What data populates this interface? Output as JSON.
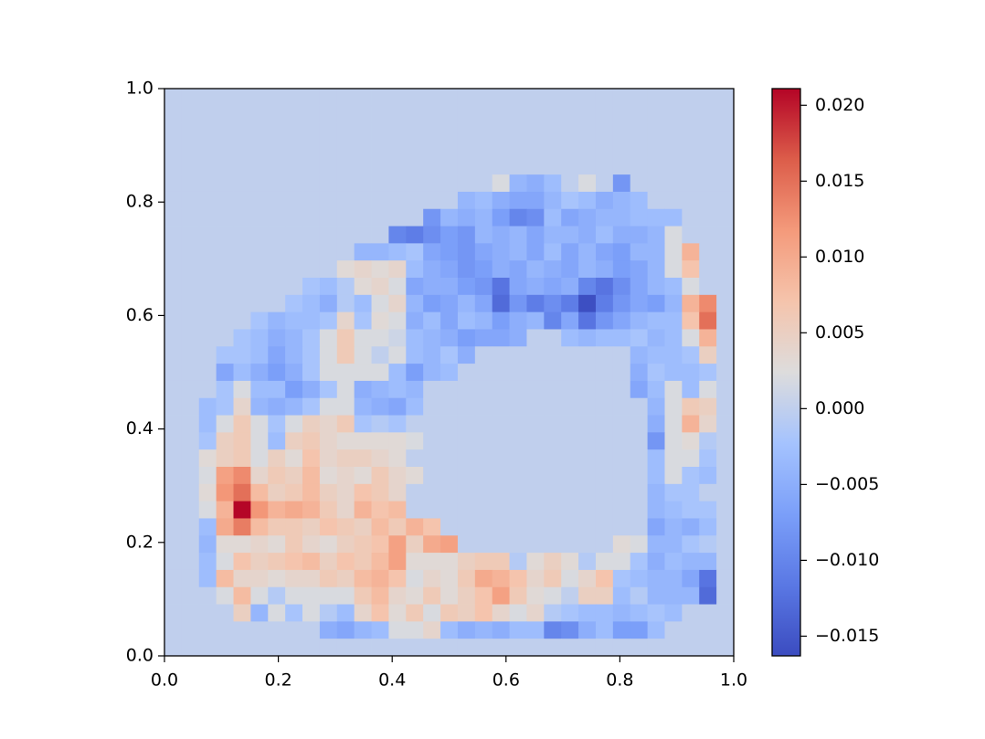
{
  "chart_data": {
    "type": "heatmap",
    "colormap": "coolwarm",
    "xlim": [
      0,
      1
    ],
    "ylim": [
      0,
      1
    ],
    "xticks": [
      {
        "value": 0,
        "label": "0.0"
      },
      0.2,
      0.4,
      0.6,
      0.8,
      {
        "value": 1,
        "label": "1.0"
      }
    ],
    "yticks": [
      {
        "value": 0,
        "label": "0.0"
      },
      0.2,
      0.4,
      0.6,
      0.8,
      {
        "value": 1,
        "label": "1.0"
      }
    ],
    "clim": [
      -0.0163,
      0.0211
    ],
    "cticks": [
      {
        "value": -0.015,
        "label": "−0.015"
      },
      {
        "value": -0.01,
        "label": "−0.010"
      },
      {
        "value": -0.005,
        "label": "−0.005"
      },
      {
        "value": 0,
        "label": "0.000"
      },
      {
        "value": 0.005,
        "label": "0.005"
      },
      {
        "value": 0.01,
        "label": "0.010"
      },
      {
        "value": 0.015,
        "label": "0.015"
      },
      {
        "value": 0.02,
        "label": "0.020"
      }
    ],
    "z": [
      [
        0,
        0,
        0,
        0,
        0,
        0,
        0,
        0,
        0,
        0,
        0,
        0,
        0,
        0,
        0,
        0,
        0,
        0,
        0,
        0,
        0,
        0,
        0,
        0,
        0,
        0,
        0,
        0,
        0,
        0,
        0,
        0,
        0
      ],
      [
        0,
        0,
        0,
        0,
        0,
        0,
        0,
        0,
        0,
        0,
        0,
        0,
        0,
        0,
        0,
        0,
        0,
        0,
        0,
        0,
        0,
        0,
        0,
        0,
        0,
        0,
        0,
        0,
        0,
        0,
        0,
        0,
        0
      ],
      [
        0,
        0,
        0,
        0,
        0,
        0,
        0,
        0,
        0,
        0,
        0,
        0,
        0,
        0,
        0,
        0,
        0,
        0,
        0,
        0,
        0,
        0,
        0,
        0,
        0,
        0,
        0,
        0,
        0,
        0,
        0,
        0,
        0
      ],
      [
        0,
        0,
        0,
        0,
        0,
        0,
        0,
        0,
        0,
        0,
        0,
        0,
        0,
        0,
        0,
        0,
        0,
        0,
        0,
        0,
        0,
        0,
        0,
        0,
        0,
        0,
        0,
        0,
        0,
        0,
        0,
        0,
        0
      ],
      [
        0,
        0,
        0,
        0,
        0,
        0,
        0,
        0,
        0,
        0,
        0,
        0,
        0,
        0,
        0,
        0,
        0,
        0,
        0,
        0,
        0,
        0,
        0,
        0,
        0,
        0,
        0,
        0,
        0,
        0,
        0,
        0,
        0
      ],
      [
        0,
        0,
        0,
        0,
        0,
        0,
        0,
        0,
        0,
        0,
        0,
        0,
        0,
        0,
        0,
        0,
        0,
        0,
        0,
        0.002,
        -0.004,
        -0.005,
        -0.003,
        0,
        0.002,
        0,
        -0.008,
        0,
        0,
        0,
        0,
        0,
        0
      ],
      [
        0,
        0,
        0,
        0,
        0,
        0,
        0,
        0,
        0,
        0,
        0,
        0,
        0,
        0,
        0,
        0,
        0,
        -0.004,
        -0.003,
        -0.005,
        -0.006,
        -0.006,
        -0.004,
        -0.002,
        -0.003,
        -0.005,
        -0.004,
        -0.003,
        0,
        0,
        0,
        0,
        0
      ],
      [
        0,
        0,
        0,
        0,
        0,
        0,
        0,
        0,
        0,
        0,
        0,
        0,
        0,
        0,
        0,
        -0.008,
        -0.004,
        -0.005,
        -0.004,
        -0.007,
        -0.01,
        -0.009,
        -0.003,
        -0.006,
        -0.005,
        -0.004,
        -0.004,
        -0.003,
        -0.003,
        -0.003,
        0,
        0,
        0
      ],
      [
        0,
        0,
        0,
        0,
        0,
        0,
        0,
        0,
        0,
        0,
        0,
        0,
        0,
        -0.01,
        -0.011,
        -0.009,
        -0.007,
        -0.008,
        -0.004,
        -0.005,
        -0.004,
        -0.006,
        -0.004,
        -0.004,
        -0.005,
        -0.003,
        -0.005,
        -0.005,
        -0.004,
        0.002,
        0,
        0,
        0
      ],
      [
        0,
        0,
        0,
        0,
        0,
        0,
        0,
        0,
        0,
        0,
        0,
        -0.004,
        -0.004,
        -0.003,
        -0.002,
        -0.006,
        -0.007,
        -0.008,
        -0.006,
        -0.005,
        -0.004,
        -0.006,
        -0.003,
        -0.006,
        -0.004,
        -0.006,
        -0.007,
        -0.004,
        -0.004,
        0.002,
        0.009,
        0,
        0
      ],
      [
        0,
        0,
        0,
        0,
        0,
        0,
        0,
        0,
        0,
        0,
        0.003,
        0.004,
        0.003,
        0.004,
        -0.003,
        -0.005,
        -0.006,
        -0.008,
        -0.007,
        -0.005,
        -0.006,
        -0.004,
        -0.005,
        -0.006,
        -0.004,
        -0.005,
        -0.007,
        -0.006,
        -0.004,
        0.002,
        0.007,
        0,
        0
      ],
      [
        0,
        0,
        0,
        0,
        0,
        0,
        0,
        0,
        -0.002,
        -0.003,
        -0.001,
        0.003,
        0.004,
        0.002,
        -0.006,
        -0.005,
        -0.005,
        -0.007,
        -0.008,
        -0.012,
        -0.006,
        -0.005,
        -0.006,
        -0.005,
        -0.01,
        -0.012,
        -0.009,
        -0.006,
        -0.004,
        -0.003,
        0.002,
        0,
        0
      ],
      [
        0,
        0,
        0,
        0,
        0,
        0,
        0,
        -0.002,
        -0.003,
        -0.005,
        -0.001,
        -0.003,
        0.002,
        0.004,
        -0.004,
        -0.007,
        -0.006,
        -0.004,
        -0.006,
        -0.013,
        -0.008,
        -0.011,
        -0.009,
        -0.011,
        -0.016,
        -0.011,
        -0.008,
        -0.006,
        -0.007,
        -0.004,
        0.009,
        0.013,
        0
      ],
      [
        0,
        0,
        0,
        0,
        0,
        -0.002,
        -0.004,
        -0.003,
        -0.003,
        -0.002,
        0.004,
        -0.002,
        0.003,
        0.002,
        -0.005,
        -0.003,
        -0.006,
        -0.003,
        -0.004,
        -0.007,
        -0.005,
        -0.004,
        -0.01,
        -0.006,
        -0.012,
        -0.008,
        -0.006,
        -0.004,
        -0.003,
        -0.003,
        0.007,
        0.015,
        0
      ],
      [
        0,
        0,
        0,
        0,
        -0.002,
        -0.003,
        -0.005,
        -0.004,
        -0.002,
        0.002,
        0.006,
        0.002,
        0.002,
        0.001,
        -0.003,
        -0.004,
        -0.005,
        -0.007,
        -0.006,
        -0.006,
        -0.005,
        0,
        0,
        -0.003,
        -0.004,
        -0.003,
        -0.003,
        -0.002,
        -0.004,
        -0.003,
        0.002,
        0.009,
        0
      ],
      [
        0,
        0,
        0,
        -0.002,
        -0.002,
        -0.003,
        -0.006,
        -0.004,
        -0.002,
        0.002,
        0.006,
        0.002,
        0,
        0.002,
        -0.003,
        -0.004,
        -0.002,
        -0.005,
        0,
        0,
        0,
        0,
        0,
        0,
        0,
        0,
        0,
        -0.004,
        -0.003,
        -0.003,
        -0.002,
        0.005,
        0
      ],
      [
        0,
        0,
        0,
        -0.006,
        -0.003,
        -0.005,
        -0.007,
        -0.005,
        -0.002,
        0.002,
        0.002,
        0.002,
        0.002,
        -0.003,
        -0.007,
        -0.004,
        -0.003,
        0,
        0,
        0,
        0,
        0,
        0,
        0,
        0,
        0,
        0,
        -0.005,
        -0.002,
        -0.003,
        -0.003,
        -0.002,
        0
      ],
      [
        0,
        0,
        0,
        -0.002,
        0.002,
        -0.003,
        -0.003,
        -0.007,
        -0.005,
        -0.002,
        0.002,
        -0.005,
        -0.004,
        -0.003,
        -0.004,
        0,
        0,
        0,
        0,
        0,
        0,
        0,
        0,
        0,
        0,
        0,
        0,
        -0.006,
        -0.003,
        0.002,
        -0.003,
        0.002,
        0
      ],
      [
        0,
        0,
        -0.003,
        -0.002,
        0.004,
        -0.004,
        -0.005,
        -0.004,
        -0.002,
        0.002,
        0.002,
        -0.004,
        -0.005,
        -0.006,
        -0.003,
        0,
        0,
        0,
        0,
        0,
        0,
        0,
        0,
        0,
        0,
        0,
        0,
        0,
        -0.004,
        0.002,
        0.006,
        0.005,
        0
      ],
      [
        0,
        0,
        -0.003,
        0.002,
        0.006,
        0.002,
        -0.002,
        0.002,
        0.005,
        0.004,
        0.006,
        -0.002,
        -0.001,
        -0.002,
        0,
        0,
        0,
        0,
        0,
        0,
        0,
        0,
        0,
        0,
        0,
        0,
        0,
        0,
        -0.005,
        0.002,
        0.009,
        0.004,
        0
      ],
      [
        0,
        0,
        -0.002,
        0.005,
        0.006,
        0.002,
        -0.003,
        0.005,
        0.006,
        0.004,
        0.003,
        0.003,
        0.003,
        0.003,
        0.002,
        0,
        0,
        0,
        0,
        0,
        0,
        0,
        0,
        0,
        0,
        0,
        0,
        0,
        -0.008,
        0.002,
        0.003,
        -0.001,
        0
      ],
      [
        0,
        0,
        0.003,
        0.005,
        0.006,
        0.002,
        0.005,
        0.003,
        0.007,
        0.004,
        0.005,
        0.005,
        0.004,
        0.003,
        0,
        0,
        0,
        0,
        0,
        0,
        0,
        0,
        0,
        0,
        0,
        0,
        0,
        0,
        -0.003,
        0.002,
        0.002,
        -0.002,
        0
      ],
      [
        0,
        0,
        0.002,
        0.011,
        0.013,
        0.004,
        0.006,
        0.005,
        0.008,
        0.003,
        0.004,
        0.003,
        0.006,
        0.004,
        0.003,
        0,
        0,
        0,
        0,
        0,
        0,
        0,
        0,
        0,
        0,
        0,
        0,
        0,
        -0.003,
        0.002,
        -0.002,
        -0.003,
        0
      ],
      [
        0,
        0,
        0.003,
        0.012,
        0.015,
        0.008,
        0.005,
        0.006,
        0.008,
        0.005,
        0.004,
        0.007,
        0.006,
        0.004,
        0,
        0,
        0,
        0,
        0,
        0,
        0,
        0,
        0,
        0,
        0,
        0,
        0,
        0,
        -0.004,
        -0.002,
        -0.002,
        0,
        0
      ],
      [
        0,
        0,
        0.002,
        0.009,
        0.021,
        0.012,
        0.009,
        0.01,
        0.009,
        0.006,
        0.004,
        0.009,
        0.007,
        0.008,
        0,
        0,
        0,
        0,
        0,
        0,
        0,
        0,
        0,
        0,
        0,
        0,
        0,
        0,
        -0.004,
        -0.003,
        -0.002,
        -0.002,
        0
      ],
      [
        0,
        0,
        -0.003,
        0.01,
        0.014,
        0.008,
        0.006,
        0.006,
        0.005,
        0.007,
        0.006,
        0.005,
        0.008,
        0.006,
        0.009,
        0.007,
        0,
        0,
        0,
        0,
        0,
        0,
        0,
        0,
        0,
        0,
        0,
        0,
        -0.006,
        -0.004,
        -0.005,
        -0.003,
        0
      ],
      [
        0,
        0,
        -0.004,
        0.003,
        0.003,
        0.004,
        0.003,
        0.006,
        0.004,
        0.003,
        0.005,
        0.006,
        0.007,
        0.011,
        0.005,
        0.01,
        0.011,
        0,
        0,
        0,
        0,
        0,
        0,
        0,
        0,
        0,
        0.003,
        0.002,
        -0.004,
        -0.004,
        -0.002,
        -0.001,
        0
      ],
      [
        0,
        0,
        -0.003,
        0.002,
        0.007,
        0.005,
        0.006,
        0.007,
        0.008,
        0.005,
        0.007,
        0.006,
        0.008,
        0.011,
        0.003,
        0.003,
        0.003,
        0.005,
        0.006,
        0.006,
        -0.001,
        0.003,
        0.005,
        0.003,
        -0.001,
        0.002,
        0.002,
        -0.002,
        -0.005,
        -0.003,
        -0.004,
        -0.004,
        0
      ],
      [
        0,
        0,
        -0.003,
        0.008,
        0.004,
        0.004,
        0.003,
        0.004,
        0.004,
        0.006,
        0.005,
        0.008,
        0.009,
        0.007,
        0.002,
        0.004,
        0.003,
        0.006,
        0.01,
        0.009,
        0.007,
        0.004,
        0.006,
        0.002,
        0.004,
        0.007,
        -0.002,
        -0.003,
        -0.004,
        -0.004,
        -0.006,
        -0.012,
        0
      ],
      [
        0,
        0,
        0,
        0.002,
        0.008,
        0.002,
        -0.001,
        0.002,
        0.002,
        0.002,
        0.002,
        0.006,
        0.008,
        0.004,
        0.003,
        0.006,
        0.003,
        0.005,
        0.007,
        0.011,
        0.006,
        0.003,
        0.002,
        0,
        0.005,
        0.005,
        -0.003,
        -0.001,
        -0.004,
        -0.004,
        -0.004,
        -0.013,
        0
      ],
      [
        0,
        0,
        0,
        0,
        0.005,
        -0.004,
        0.002,
        -0.002,
        0.002,
        -0.001,
        -0.003,
        0.004,
        0.007,
        0.003,
        0.006,
        0.002,
        0.006,
        0.005,
        0.007,
        0.004,
        0.002,
        0.004,
        -0.001,
        -0.002,
        -0.003,
        -0.003,
        -0.004,
        -0.003,
        -0.002,
        -0.003,
        0,
        0,
        0
      ],
      [
        0,
        0,
        0,
        0,
        0,
        0,
        0,
        0,
        0,
        -0.005,
        -0.006,
        -0.004,
        -0.003,
        0.002,
        0.002,
        0.004,
        -0.003,
        -0.005,
        -0.004,
        -0.005,
        -0.003,
        -0.003,
        -0.01,
        -0.009,
        -0.005,
        -0.003,
        -0.007,
        -0.007,
        -0.003,
        0,
        0,
        0,
        0
      ],
      [
        0,
        0,
        0,
        0,
        0,
        0,
        0,
        0,
        0,
        0,
        0,
        0,
        0,
        0,
        0,
        0,
        0,
        0,
        0,
        0,
        0,
        0,
        0,
        0,
        0,
        0,
        0,
        0,
        0,
        0,
        0,
        0,
        0
      ]
    ]
  }
}
